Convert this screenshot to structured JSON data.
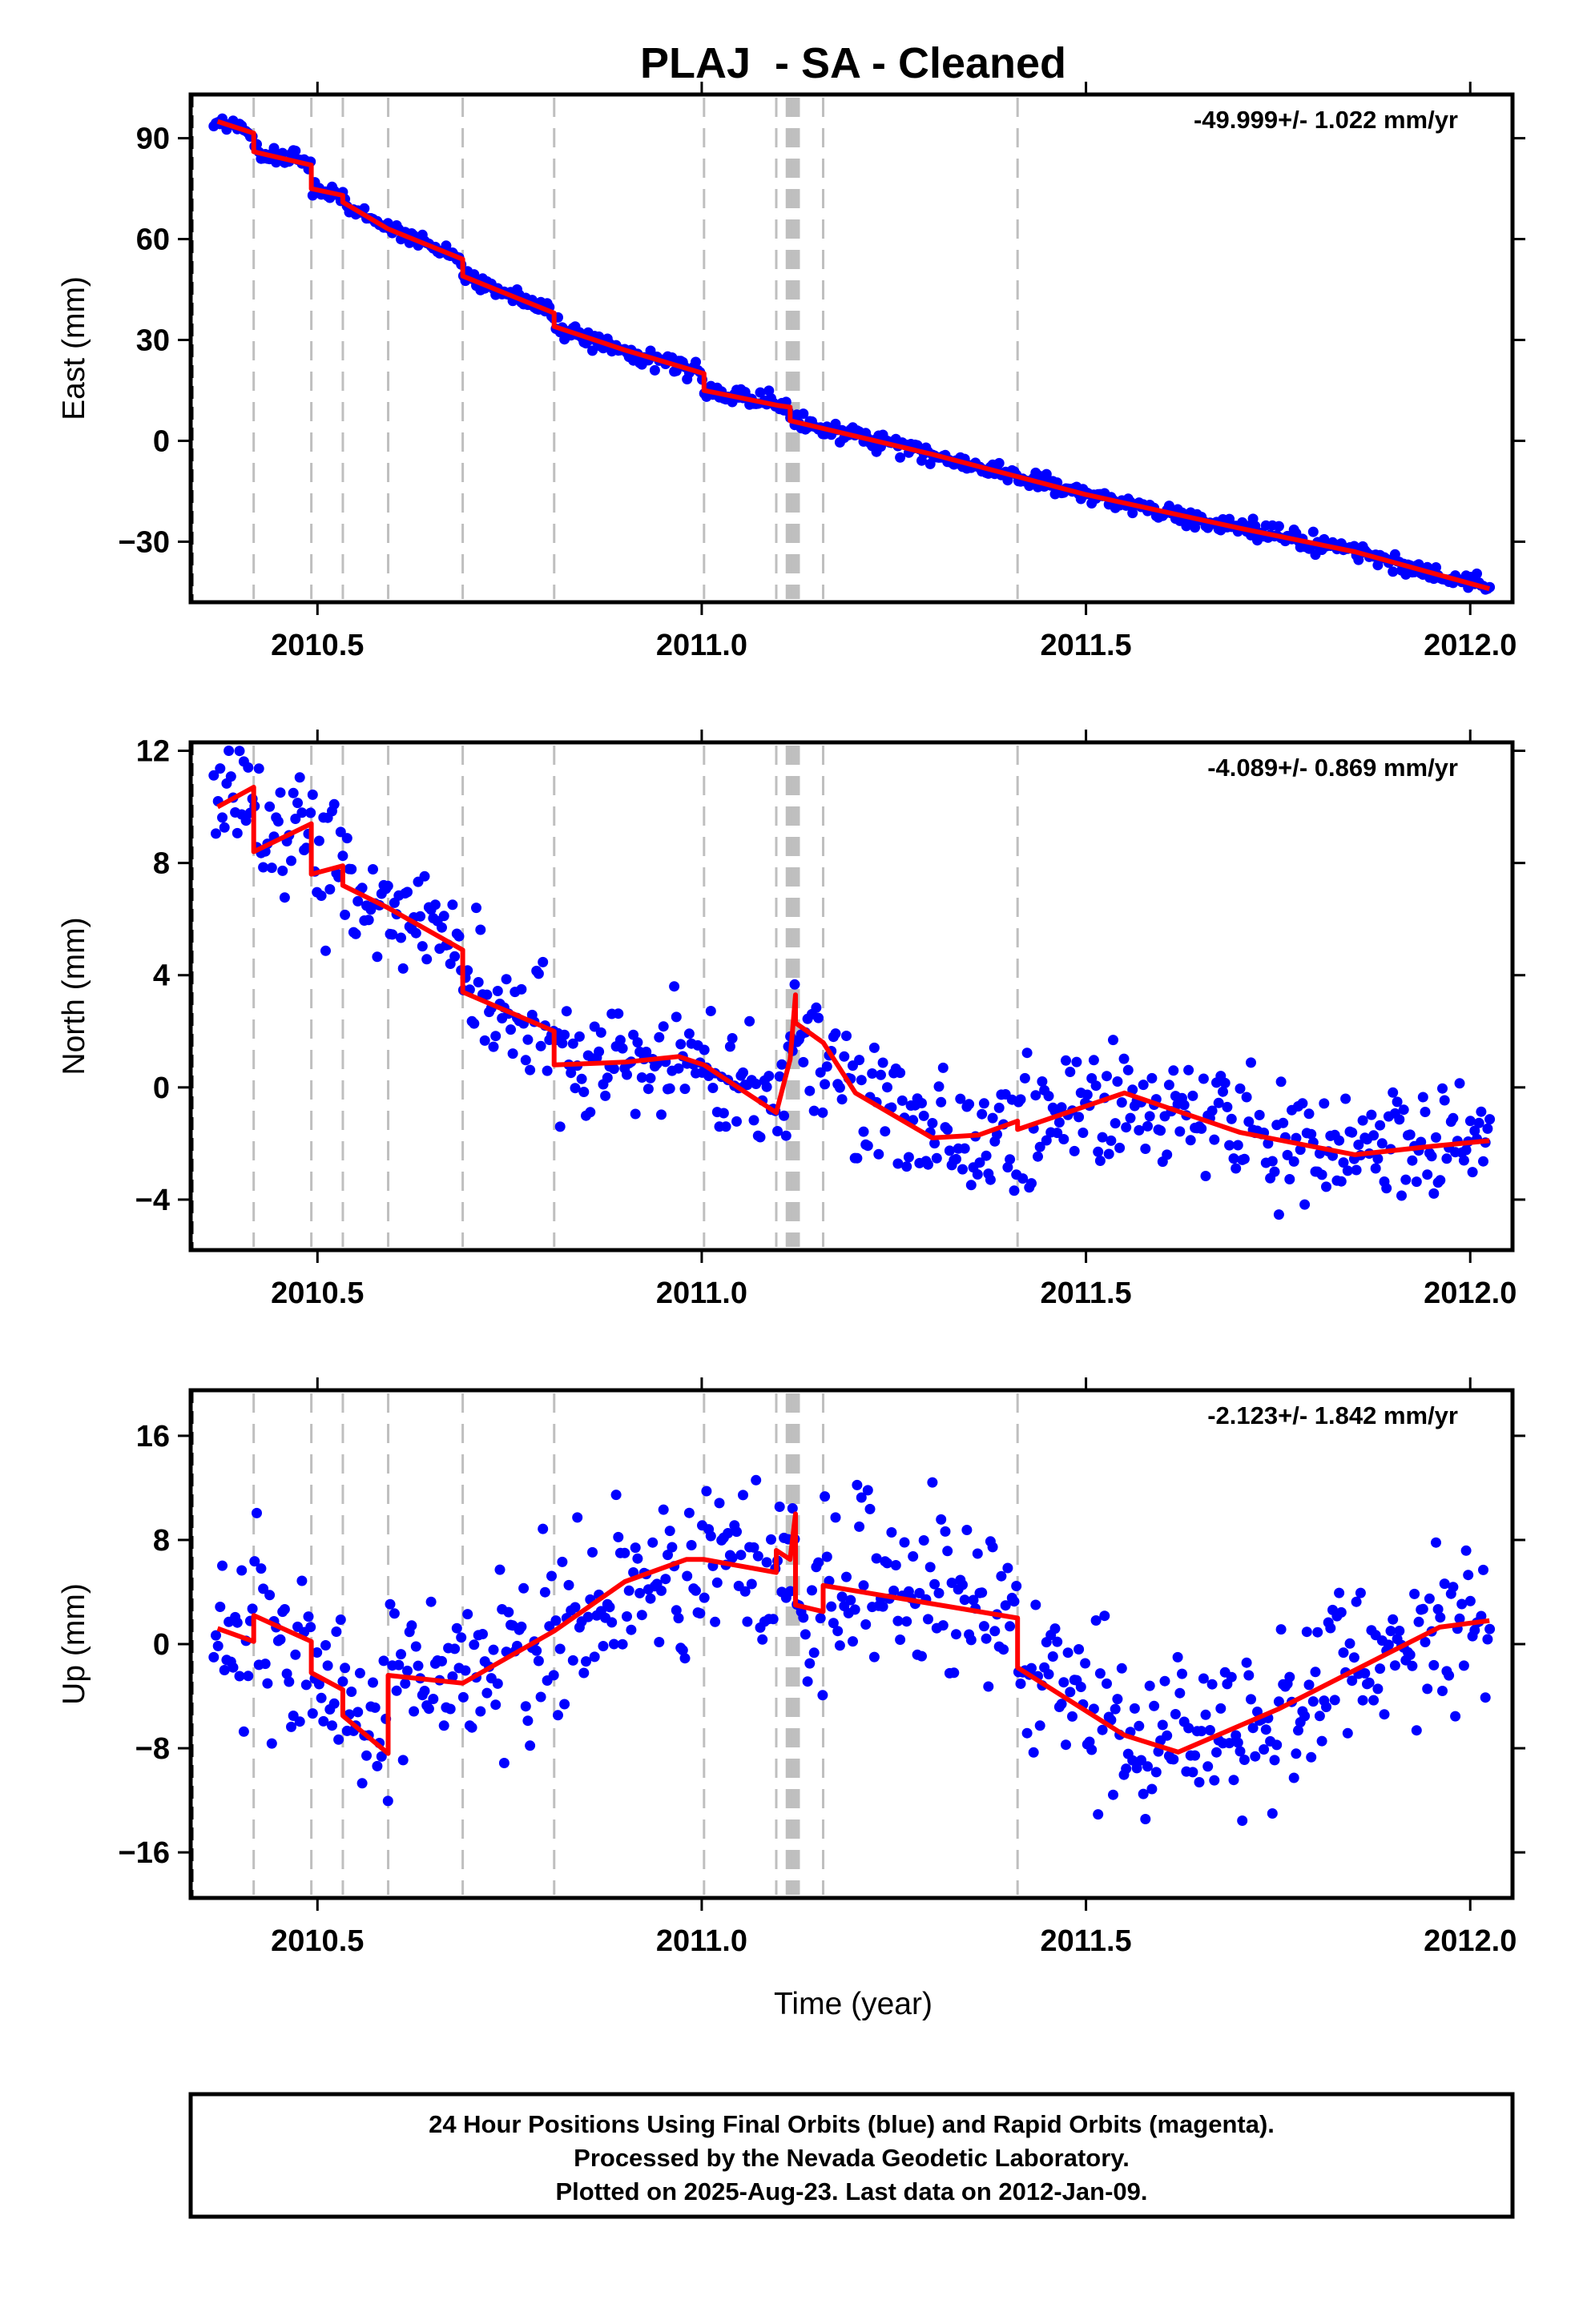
{
  "page": {
    "title": "PLAJ  - SA - Cleaned",
    "xlabel": "Time (year)",
    "footer": [
      "24 Hour Positions Using Final Orbits (blue) and Rapid Orbits (magenta).",
      "Processed by the Nevada Geodetic Laboratory.",
      "Plotted on 2025-Aug-23. Last data on 2012-Jan-09."
    ]
  },
  "colors": {
    "points": "#0000ff",
    "model": "#ff0000",
    "breaks": "#bfbfbf"
  },
  "chart_data": [
    {
      "type": "scatter",
      "ylabel": "East (mm)",
      "rate_label": "-49.999+/- 1.022 mm/yr",
      "xlim": [
        2010.335,
        2012.055
      ],
      "ylim": [
        -48,
        103
      ],
      "xticks": [
        2010.5,
        2011.0,
        2011.5,
        2012.0
      ],
      "xtick_labels": [
        "2010.5",
        "2011.0",
        "2011.5",
        "2012.0"
      ],
      "yticks": [
        90,
        60,
        30,
        0,
        -30
      ],
      "ytick_labels": [
        "90",
        "60",
        "30",
        "0",
        "−30"
      ],
      "breaks": [
        2010.417,
        2010.492,
        2010.533,
        2010.592,
        2010.689,
        2010.808,
        2011.003,
        2011.097,
        2011.115,
        2011.122,
        2011.158,
        2011.411
      ],
      "model_knots": [
        [
          2010.37,
          95
        ],
        [
          2010.417,
          91.5
        ],
        [
          2010.417,
          86
        ],
        [
          2010.492,
          82
        ],
        [
          2010.492,
          75
        ],
        [
          2010.533,
          73
        ],
        [
          2010.533,
          71
        ],
        [
          2010.592,
          63
        ],
        [
          2010.689,
          54
        ],
        [
          2010.689,
          49
        ],
        [
          2010.808,
          38
        ],
        [
          2010.808,
          34
        ],
        [
          2010.9,
          27
        ],
        [
          2011.003,
          20
        ],
        [
          2011.003,
          15
        ],
        [
          2011.1,
          10.5
        ],
        [
          2011.115,
          10
        ],
        [
          2011.115,
          6
        ],
        [
          2011.3,
          -4
        ],
        [
          2011.5,
          -16
        ],
        [
          2011.7,
          -26
        ],
        [
          2011.85,
          -33
        ],
        [
          2012.025,
          -44
        ]
      ],
      "noise_sd": 1.3,
      "sample_step": 0.0028
    },
    {
      "type": "scatter",
      "ylabel": "North (mm)",
      "rate_label": "-4.089+/- 0.869 mm/yr",
      "xlim": [
        2010.335,
        2012.055
      ],
      "ylim": [
        -5.8,
        12.3
      ],
      "xticks": [
        2010.5,
        2011.0,
        2011.5,
        2012.0
      ],
      "xtick_labels": [
        "2010.5",
        "2011.0",
        "2011.5",
        "2012.0"
      ],
      "yticks": [
        12,
        8,
        4,
        0,
        -4
      ],
      "ytick_labels": [
        "12",
        "8",
        "4",
        "0",
        "−4"
      ],
      "breaks": [
        2010.417,
        2010.492,
        2010.533,
        2010.592,
        2010.689,
        2010.808,
        2011.003,
        2011.097,
        2011.115,
        2011.122,
        2011.158,
        2011.411
      ],
      "model_knots": [
        [
          2010.37,
          10
        ],
        [
          2010.417,
          10.7
        ],
        [
          2010.417,
          8.4
        ],
        [
          2010.492,
          9.4
        ],
        [
          2010.492,
          7.6
        ],
        [
          2010.533,
          7.9
        ],
        [
          2010.533,
          7.2
        ],
        [
          2010.592,
          6.4
        ],
        [
          2010.689,
          4.9
        ],
        [
          2010.689,
          3.4
        ],
        [
          2010.808,
          2.0
        ],
        [
          2010.808,
          0.8
        ],
        [
          2010.9,
          0.9
        ],
        [
          2010.97,
          1.1
        ],
        [
          2011.003,
          0.8
        ],
        [
          2011.097,
          -0.9
        ],
        [
          2011.115,
          1.0
        ],
        [
          2011.122,
          3.3
        ],
        [
          2011.122,
          2.3
        ],
        [
          2011.158,
          1.6
        ],
        [
          2011.2,
          -0.2
        ],
        [
          2011.3,
          -1.8
        ],
        [
          2011.36,
          -1.7
        ],
        [
          2011.411,
          -1.2
        ],
        [
          2011.411,
          -1.5
        ],
        [
          2011.55,
          -0.2
        ],
        [
          2011.7,
          -1.6
        ],
        [
          2011.85,
          -2.4
        ],
        [
          2011.95,
          -2.1
        ],
        [
          2012.025,
          -1.9
        ]
      ],
      "noise_sd": 1.1,
      "sample_step": 0.0028
    },
    {
      "type": "scatter",
      "ylabel": "Up (mm)",
      "rate_label": "-2.123+/- 1.842 mm/yr",
      "xlim": [
        2010.335,
        2012.055
      ],
      "ylim": [
        -19.5,
        19.5
      ],
      "xticks": [
        2010.5,
        2011.0,
        2011.5,
        2012.0
      ],
      "xtick_labels": [
        "2010.5",
        "2011.0",
        "2011.5",
        "2012.0"
      ],
      "yticks": [
        16,
        8,
        0,
        -8,
        -16
      ],
      "ytick_labels": [
        "16",
        "8",
        "0",
        "−8",
        "−16"
      ],
      "breaks": [
        2010.417,
        2010.492,
        2010.533,
        2010.592,
        2010.689,
        2010.808,
        2011.003,
        2011.097,
        2011.115,
        2011.122,
        2011.158,
        2011.411
      ],
      "model_knots": [
        [
          2010.37,
          1.2
        ],
        [
          2010.417,
          0.2
        ],
        [
          2010.417,
          2.2
        ],
        [
          2010.492,
          0.2
        ],
        [
          2010.492,
          -2.2
        ],
        [
          2010.533,
          -3.5
        ],
        [
          2010.533,
          -5.5
        ],
        [
          2010.592,
          -8.4
        ],
        [
          2010.592,
          -2.4
        ],
        [
          2010.689,
          -3.0
        ],
        [
          2010.808,
          1.0
        ],
        [
          2010.9,
          4.8
        ],
        [
          2010.98,
          6.5
        ],
        [
          2011.003,
          6.5
        ],
        [
          2011.097,
          5.5
        ],
        [
          2011.097,
          7.2
        ],
        [
          2011.115,
          6.5
        ],
        [
          2011.122,
          10.0
        ],
        [
          2011.122,
          3.0
        ],
        [
          2011.158,
          2.5
        ],
        [
          2011.158,
          4.5
        ],
        [
          2011.411,
          2.0
        ],
        [
          2011.411,
          -1.8
        ],
        [
          2011.55,
          -7.0
        ],
        [
          2011.62,
          -8.3
        ],
        [
          2011.75,
          -5.0
        ],
        [
          2011.9,
          -0.5
        ],
        [
          2011.96,
          1.3
        ],
        [
          2012.025,
          1.8
        ]
      ],
      "noise_sd": 3.2,
      "sample_step": 0.0028
    }
  ]
}
